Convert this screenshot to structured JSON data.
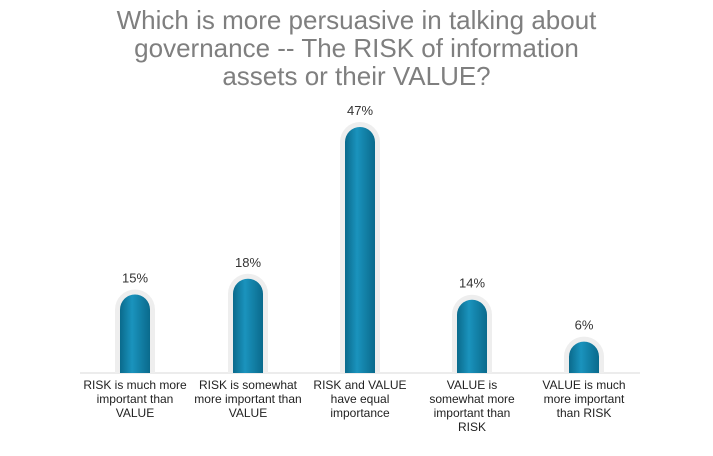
{
  "chart_data": {
    "type": "bar",
    "title_lines": [
      "Which is more persuasive in talking about",
      "governance -- The RISK of information",
      "assets or their VALUE?"
    ],
    "categories": [
      "RISK is much more important than VALUE",
      "RISK is somewhat more important than VALUE",
      "RISK and VALUE have equal importance",
      "VALUE is somewhat more important than RISK",
      "VALUE is much more important than RISK"
    ],
    "values": [
      15,
      18,
      47,
      14,
      6
    ],
    "data_labels": [
      "15%",
      "18%",
      "47%",
      "14%",
      "6%"
    ],
    "unit": "%",
    "xlabel": "",
    "ylabel": "",
    "ylim": [
      0,
      47
    ],
    "grid": false,
    "bar_color": "#0e7fa6"
  }
}
